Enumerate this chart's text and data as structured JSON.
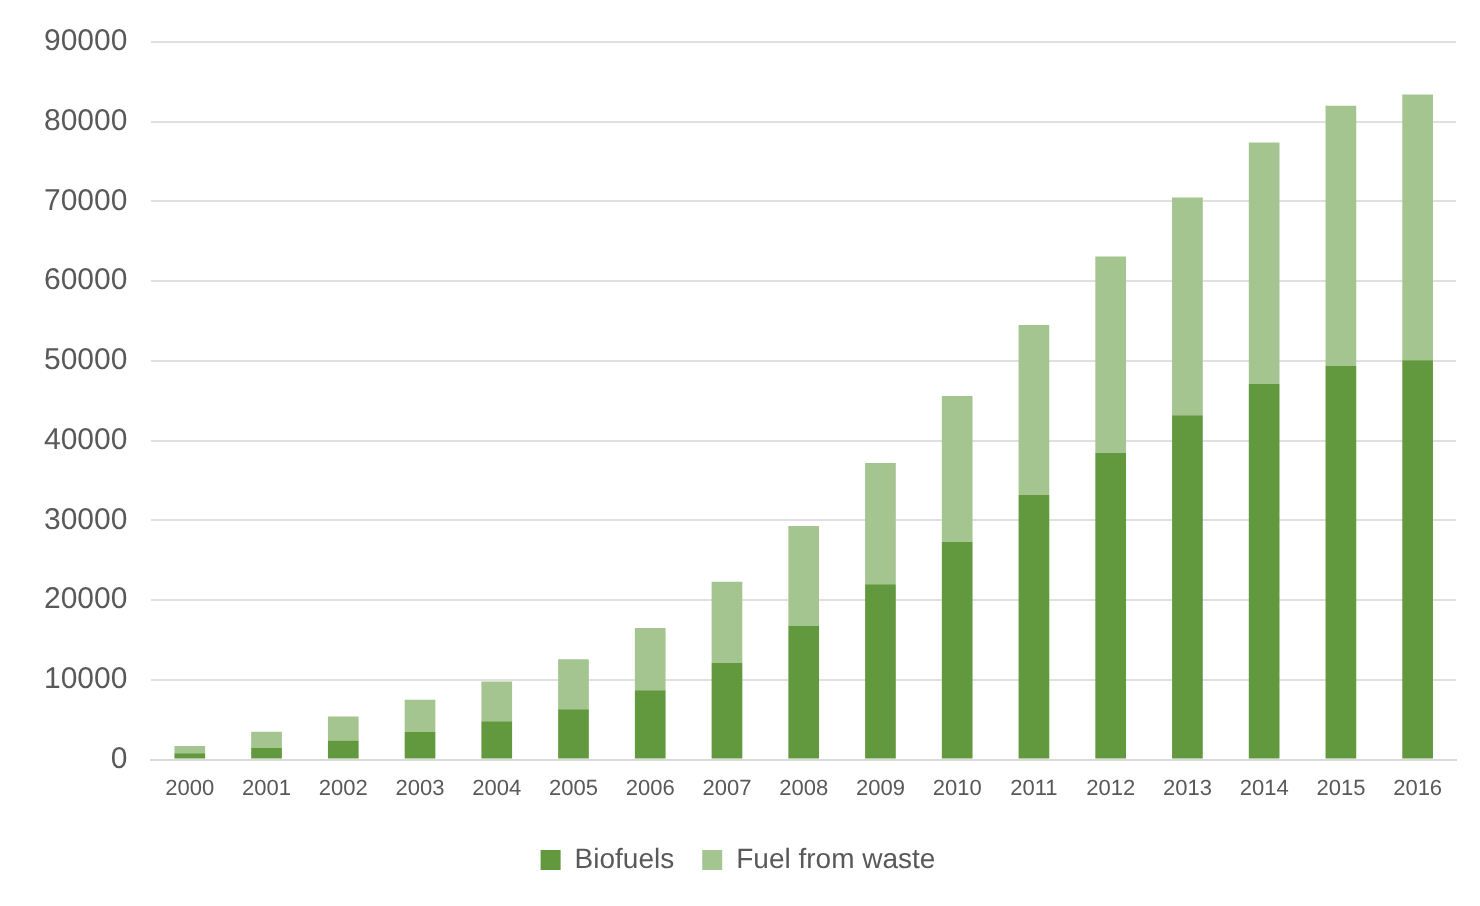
{
  "chart_data": {
    "type": "bar",
    "stacked": true,
    "categories": [
      "2000",
      "2001",
      "2002",
      "2003",
      "2004",
      "2005",
      "2006",
      "2007",
      "2008",
      "2009",
      "2010",
      "2011",
      "2012",
      "2013",
      "2014",
      "2015",
      "2016"
    ],
    "series": [
      {
        "name": "Biofuels",
        "color": "#62993e",
        "values": [
          800,
          1500,
          2400,
          3500,
          4800,
          6300,
          8700,
          12100,
          16800,
          22000,
          27300,
          33200,
          38500,
          43200,
          47100,
          49400,
          50100
        ]
      },
      {
        "name": "Fuel from waste",
        "color": "#a5c590",
        "values": [
          900,
          2000,
          3000,
          4000,
          5000,
          6300,
          7800,
          10200,
          12500,
          15200,
          18300,
          21300,
          24600,
          27300,
          30300,
          32600,
          33300
        ]
      }
    ],
    "ylim": [
      0,
      90000
    ],
    "yticks": [
      0,
      10000,
      20000,
      30000,
      40000,
      50000,
      60000,
      70000,
      80000,
      90000
    ],
    "grid": "y",
    "legend": "bottom"
  }
}
